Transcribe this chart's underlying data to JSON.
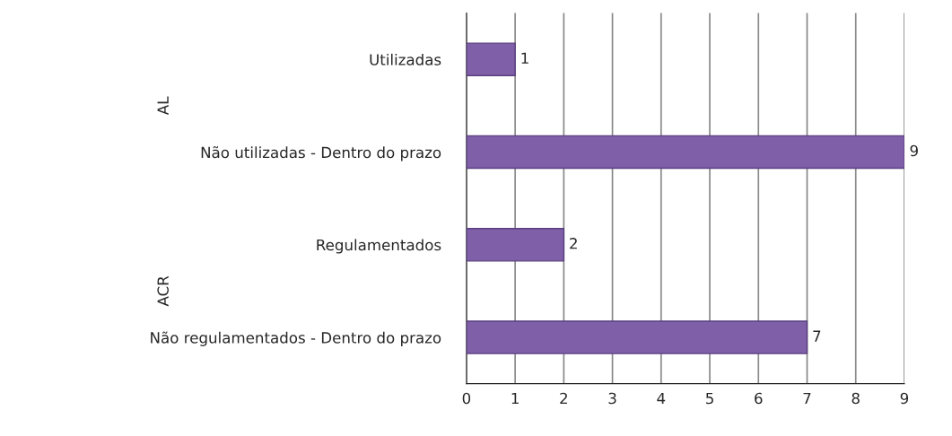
{
  "chart_data": {
    "type": "bar",
    "orientation": "horizontal",
    "categories": [
      "Utilizadas",
      "Não utilizadas - Dentro do prazo",
      "Regulamentados",
      "Não regulamentados - Dentro do prazo"
    ],
    "values": [
      1,
      9,
      2,
      7
    ],
    "color": "#7f5fa8",
    "xlim": [
      0,
      9
    ],
    "xticks": [
      0,
      1,
      2,
      3,
      4,
      5,
      6,
      7,
      8,
      9
    ],
    "grid": "x",
    "data_labels": true,
    "annotations": [
      "AL",
      "ACR"
    ]
  }
}
